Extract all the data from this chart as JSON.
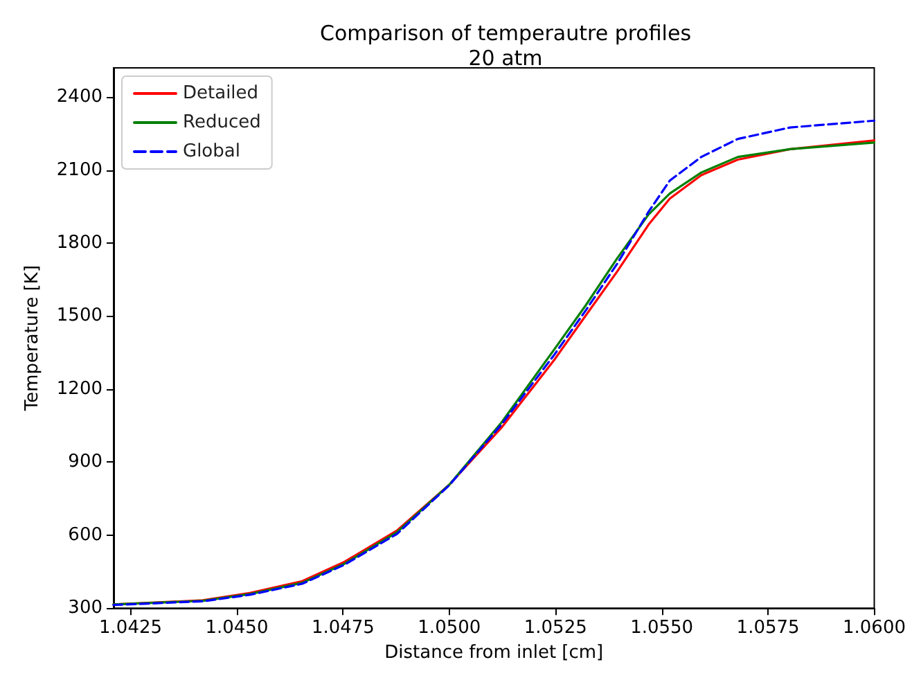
{
  "chart_data": {
    "type": "line",
    "title": "Comparison of temperautre profiles\n20 atm",
    "xlabel": "Distance from inlet [cm]",
    "ylabel": "Temperature [K]",
    "x": [
      1.0421,
      1.0442,
      1.04531,
      1.04654,
      1.04753,
      1.04877,
      1.05,
      1.05123,
      1.05247,
      1.05321,
      1.05395,
      1.05469,
      1.05519,
      1.05593,
      1.05679,
      1.05802,
      1.06
    ],
    "series": [
      {
        "name": "Detailed",
        "color": "#ff0000",
        "line_style": "solid",
        "values": [
          315,
          332,
          362,
          411,
          490,
          619,
          807,
          1042,
          1320,
          1502,
          1683,
          1876,
          1983,
          2079,
          2143,
          2186,
          2222
        ]
      },
      {
        "name": "Reduced",
        "color": "#008000",
        "line_style": "solid",
        "values": [
          315,
          330,
          358,
          404,
          482,
          612,
          807,
          1063,
          1363,
          1544,
          1737,
          1918,
          2004,
          2090,
          2154,
          2186,
          2213
        ]
      },
      {
        "name": "Global",
        "color": "#0000ff",
        "line_style": "dashed",
        "values": [
          313,
          328,
          355,
          400,
          478,
          605,
          805,
          1055,
          1341,
          1523,
          1715,
          1929,
          2057,
          2154,
          2228,
          2275,
          2303
        ]
      }
    ],
    "xlim": [
      1.0421,
      1.06
    ],
    "xticks": [
      1.0425,
      {
        "value": 1.045,
        "label": "1.0450"
      },
      1.0475,
      {
        "value": 1.05,
        "label": "1.0500"
      },
      1.0525,
      {
        "value": 1.055,
        "label": "1.0550"
      },
      1.0575,
      {
        "value": 1.06,
        "label": "1.0600"
      }
    ],
    "ylim": [
      300,
      2520
    ],
    "yticks": [
      300,
      600,
      900,
      1200,
      1500,
      1800,
      2100,
      2400
    ],
    "grid": false,
    "legend": "top left",
    "marker": "none"
  }
}
